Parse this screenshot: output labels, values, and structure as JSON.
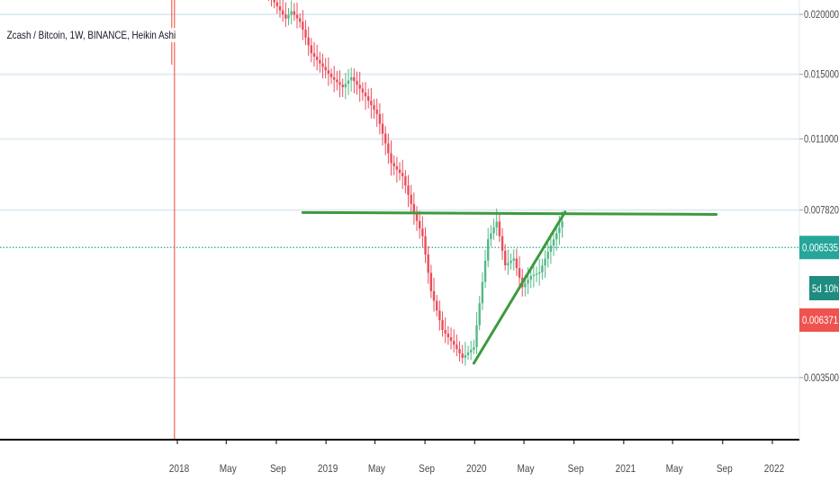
{
  "legend": {
    "symbol": "Zcash / Bitcoin, 1W, BINANCE, Heikin Ashi"
  },
  "colors": {
    "up": "#53b987",
    "down": "#eb4d5c",
    "grid": "#e1ecf2",
    "axis_text": "#4a4a4a",
    "axis_line": "#000000",
    "trendline": "#3d9a40",
    "price_line": "#26a69a",
    "price_label": "#26a69a",
    "countdown_label": "#1e8c7e",
    "low_label": "#ef5350",
    "vline": "#f44336"
  },
  "chart_data": {
    "type": "candlestick",
    "title": "Zcash / Bitcoin, 1W, BINANCE, Heikin Ashi",
    "y_axis_scale": "log",
    "y_ticks": [
      "0.020000",
      "0.015000",
      "0.011000",
      "0.007820",
      "0.003500"
    ],
    "x_ticks": [
      "2018",
      "May",
      "Sep",
      "2019",
      "May",
      "Sep",
      "2020",
      "May",
      "Sep",
      "2021",
      "May",
      "Sep",
      "2022"
    ],
    "x_tick_dates": [
      "2018-01-01",
      "2018-05-01",
      "2018-09-01",
      "2019-01-01",
      "2019-05-01",
      "2019-09-01",
      "2020-01-01",
      "2020-05-01",
      "2020-09-01",
      "2021-01-01",
      "2021-05-01",
      "2021-09-01",
      "2022-01-01"
    ],
    "y_range_visible": [
      0.0029,
      0.0235
    ],
    "grid": true,
    "vertical_marker_date": "2017-12-25",
    "trendlines": [
      {
        "name": "resistance",
        "from": [
          "2018-11-05",
          0.00773
        ],
        "to": [
          "2021-08-16",
          0.00766
        ]
      },
      {
        "name": "support",
        "from": [
          "2019-12-30",
          0.00375
        ],
        "to": [
          "2020-08-10",
          0.00775
        ]
      }
    ],
    "last_price": 0.006535,
    "last_price_label": "0.006535",
    "countdown_label": "5d 10h",
    "low_marker_price": 0.006371,
    "low_marker_label": "0.006371",
    "candles_sample": [
      {
        "date": "2018-08-06",
        "open": 0.0215,
        "close": 0.0208,
        "high": 0.0232,
        "low": 0.02
      },
      {
        "date": "2018-10-01",
        "open": 0.019,
        "close": 0.0186,
        "high": 0.0212,
        "low": 0.0178
      },
      {
        "date": "2019-03-04",
        "open": 0.0142,
        "close": 0.0139,
        "high": 0.015,
        "low": 0.0135
      },
      {
        "date": "2019-09-02",
        "open": 0.0071,
        "close": 0.0064,
        "high": 0.0078,
        "low": 0.0058
      },
      {
        "date": "2019-12-02",
        "open": 0.00388,
        "close": 0.00376,
        "high": 0.0041,
        "low": 0.00352
      },
      {
        "date": "2020-02-17",
        "open": 0.0066,
        "close": 0.0071,
        "high": 0.0081,
        "low": 0.0063
      },
      {
        "date": "2020-05-11",
        "open": 0.0057,
        "close": 0.0055,
        "high": 0.0061,
        "low": 0.0049
      },
      {
        "date": "2020-07-27",
        "open": 0.007,
        "close": 0.0074,
        "high": 0.0078,
        "low": 0.0068
      }
    ]
  }
}
